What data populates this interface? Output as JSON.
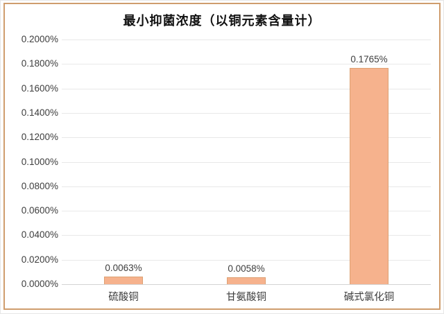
{
  "chart_data": {
    "type": "bar",
    "title": "最小抑菌浓度（以铜元素含量计）",
    "categories": [
      "硫酸铜",
      "甘氨酸铜",
      "碱式氯化铜"
    ],
    "values": [
      0.0063,
      0.0058,
      0.1765
    ],
    "value_labels": [
      "0.0063%",
      "0.0058%",
      "0.1765%"
    ],
    "xlabel": "",
    "ylabel": "",
    "ylim": [
      0,
      0.2
    ],
    "ytick_step": 0.02,
    "ytick_labels": [
      "0.0000%",
      "0.0200%",
      "0.0400%",
      "0.0600%",
      "0.0800%",
      "0.1000%",
      "0.1200%",
      "0.1400%",
      "0.1600%",
      "0.1800%",
      "0.2000%"
    ],
    "grid": true,
    "legend": "none",
    "colors": {
      "bar_fill": "#f6b28d",
      "bar_border": "#dda173",
      "frame_border": "#cf9d6d",
      "gridline": "#e8e8e8",
      "axis_line": "#d4d4d4",
      "text": "#3d3d3d"
    }
  }
}
